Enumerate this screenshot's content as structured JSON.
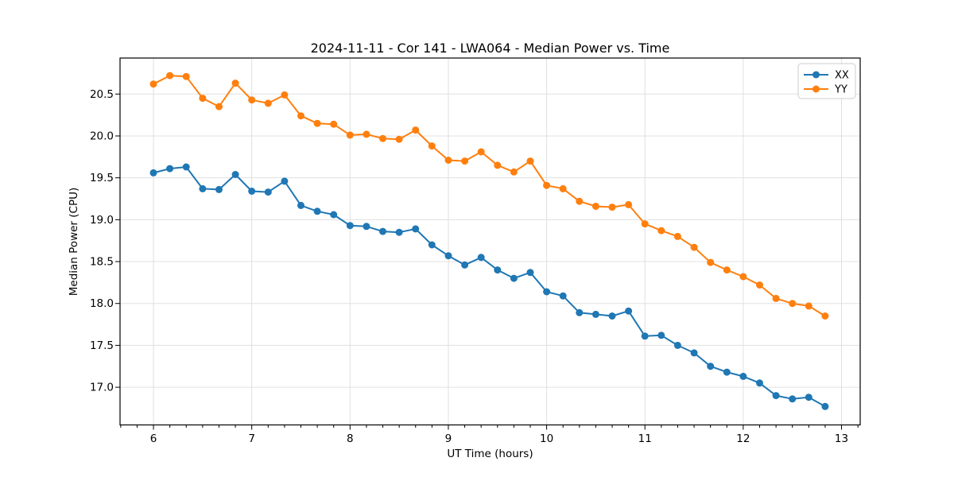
{
  "chart_data": {
    "type": "line",
    "title": "2024-11-11 - Cor 141 - LWA064 - Median Power vs. Time",
    "xlabel": "UT Time (hours)",
    "ylabel": "Median Power (CPU)",
    "x": [
      6.0,
      6.1667,
      6.3333,
      6.5,
      6.6667,
      6.8333,
      7.0,
      7.1667,
      7.3333,
      7.5,
      7.6667,
      7.8333,
      8.0,
      8.1667,
      8.3333,
      8.5,
      8.6667,
      8.8333,
      9.0,
      9.1667,
      9.3333,
      9.5,
      9.6667,
      9.8333,
      10.0,
      10.1667,
      10.3333,
      10.5,
      10.6667,
      10.8333,
      11.0,
      11.1667,
      11.3333,
      11.5,
      11.6667,
      11.8333,
      12.0,
      12.1667,
      12.3333,
      12.5,
      12.6667,
      12.8333
    ],
    "series": [
      {
        "name": "XX",
        "color": "#1f77b4",
        "values": [
          19.56,
          19.61,
          19.63,
          19.37,
          19.36,
          19.54,
          19.34,
          19.33,
          19.46,
          19.17,
          19.1,
          19.06,
          18.93,
          18.92,
          18.86,
          18.85,
          18.89,
          18.7,
          18.57,
          18.46,
          18.55,
          18.4,
          18.3,
          18.37,
          18.14,
          18.09,
          17.89,
          17.87,
          17.85,
          17.91,
          17.61,
          17.62,
          17.5,
          17.41,
          17.25,
          17.18,
          17.13,
          17.05,
          16.9,
          16.86,
          16.88,
          16.77
        ]
      },
      {
        "name": "YY",
        "color": "#ff7f0e",
        "values": [
          20.62,
          20.72,
          20.71,
          20.45,
          20.35,
          20.63,
          20.43,
          20.39,
          20.49,
          20.24,
          20.15,
          20.14,
          20.01,
          20.02,
          19.97,
          19.96,
          20.07,
          19.88,
          19.71,
          19.7,
          19.81,
          19.65,
          19.57,
          19.7,
          19.41,
          19.37,
          19.22,
          19.16,
          19.15,
          19.18,
          18.95,
          18.87,
          18.8,
          18.67,
          18.49,
          18.4,
          18.32,
          18.22,
          18.06,
          18.0,
          17.97,
          17.85
        ]
      }
    ],
    "xlim": [
      5.66,
      13.19
    ],
    "ylim": [
      16.55,
      20.93
    ],
    "xticks": [
      6,
      7,
      8,
      9,
      10,
      11,
      12,
      13
    ],
    "yticks": [
      17.0,
      17.5,
      18.0,
      18.5,
      19.0,
      19.5,
      20.0,
      20.5
    ],
    "x_minor_tick_step": 0.16667,
    "grid": true,
    "legend_position": "upper right",
    "marker": "circle"
  },
  "style": {
    "grid_color": "#e0e0e0",
    "spine_color": "#000000",
    "background_color": "#ffffff",
    "legend_border_color": "#cccccc",
    "marker_radius": 4.5
  }
}
